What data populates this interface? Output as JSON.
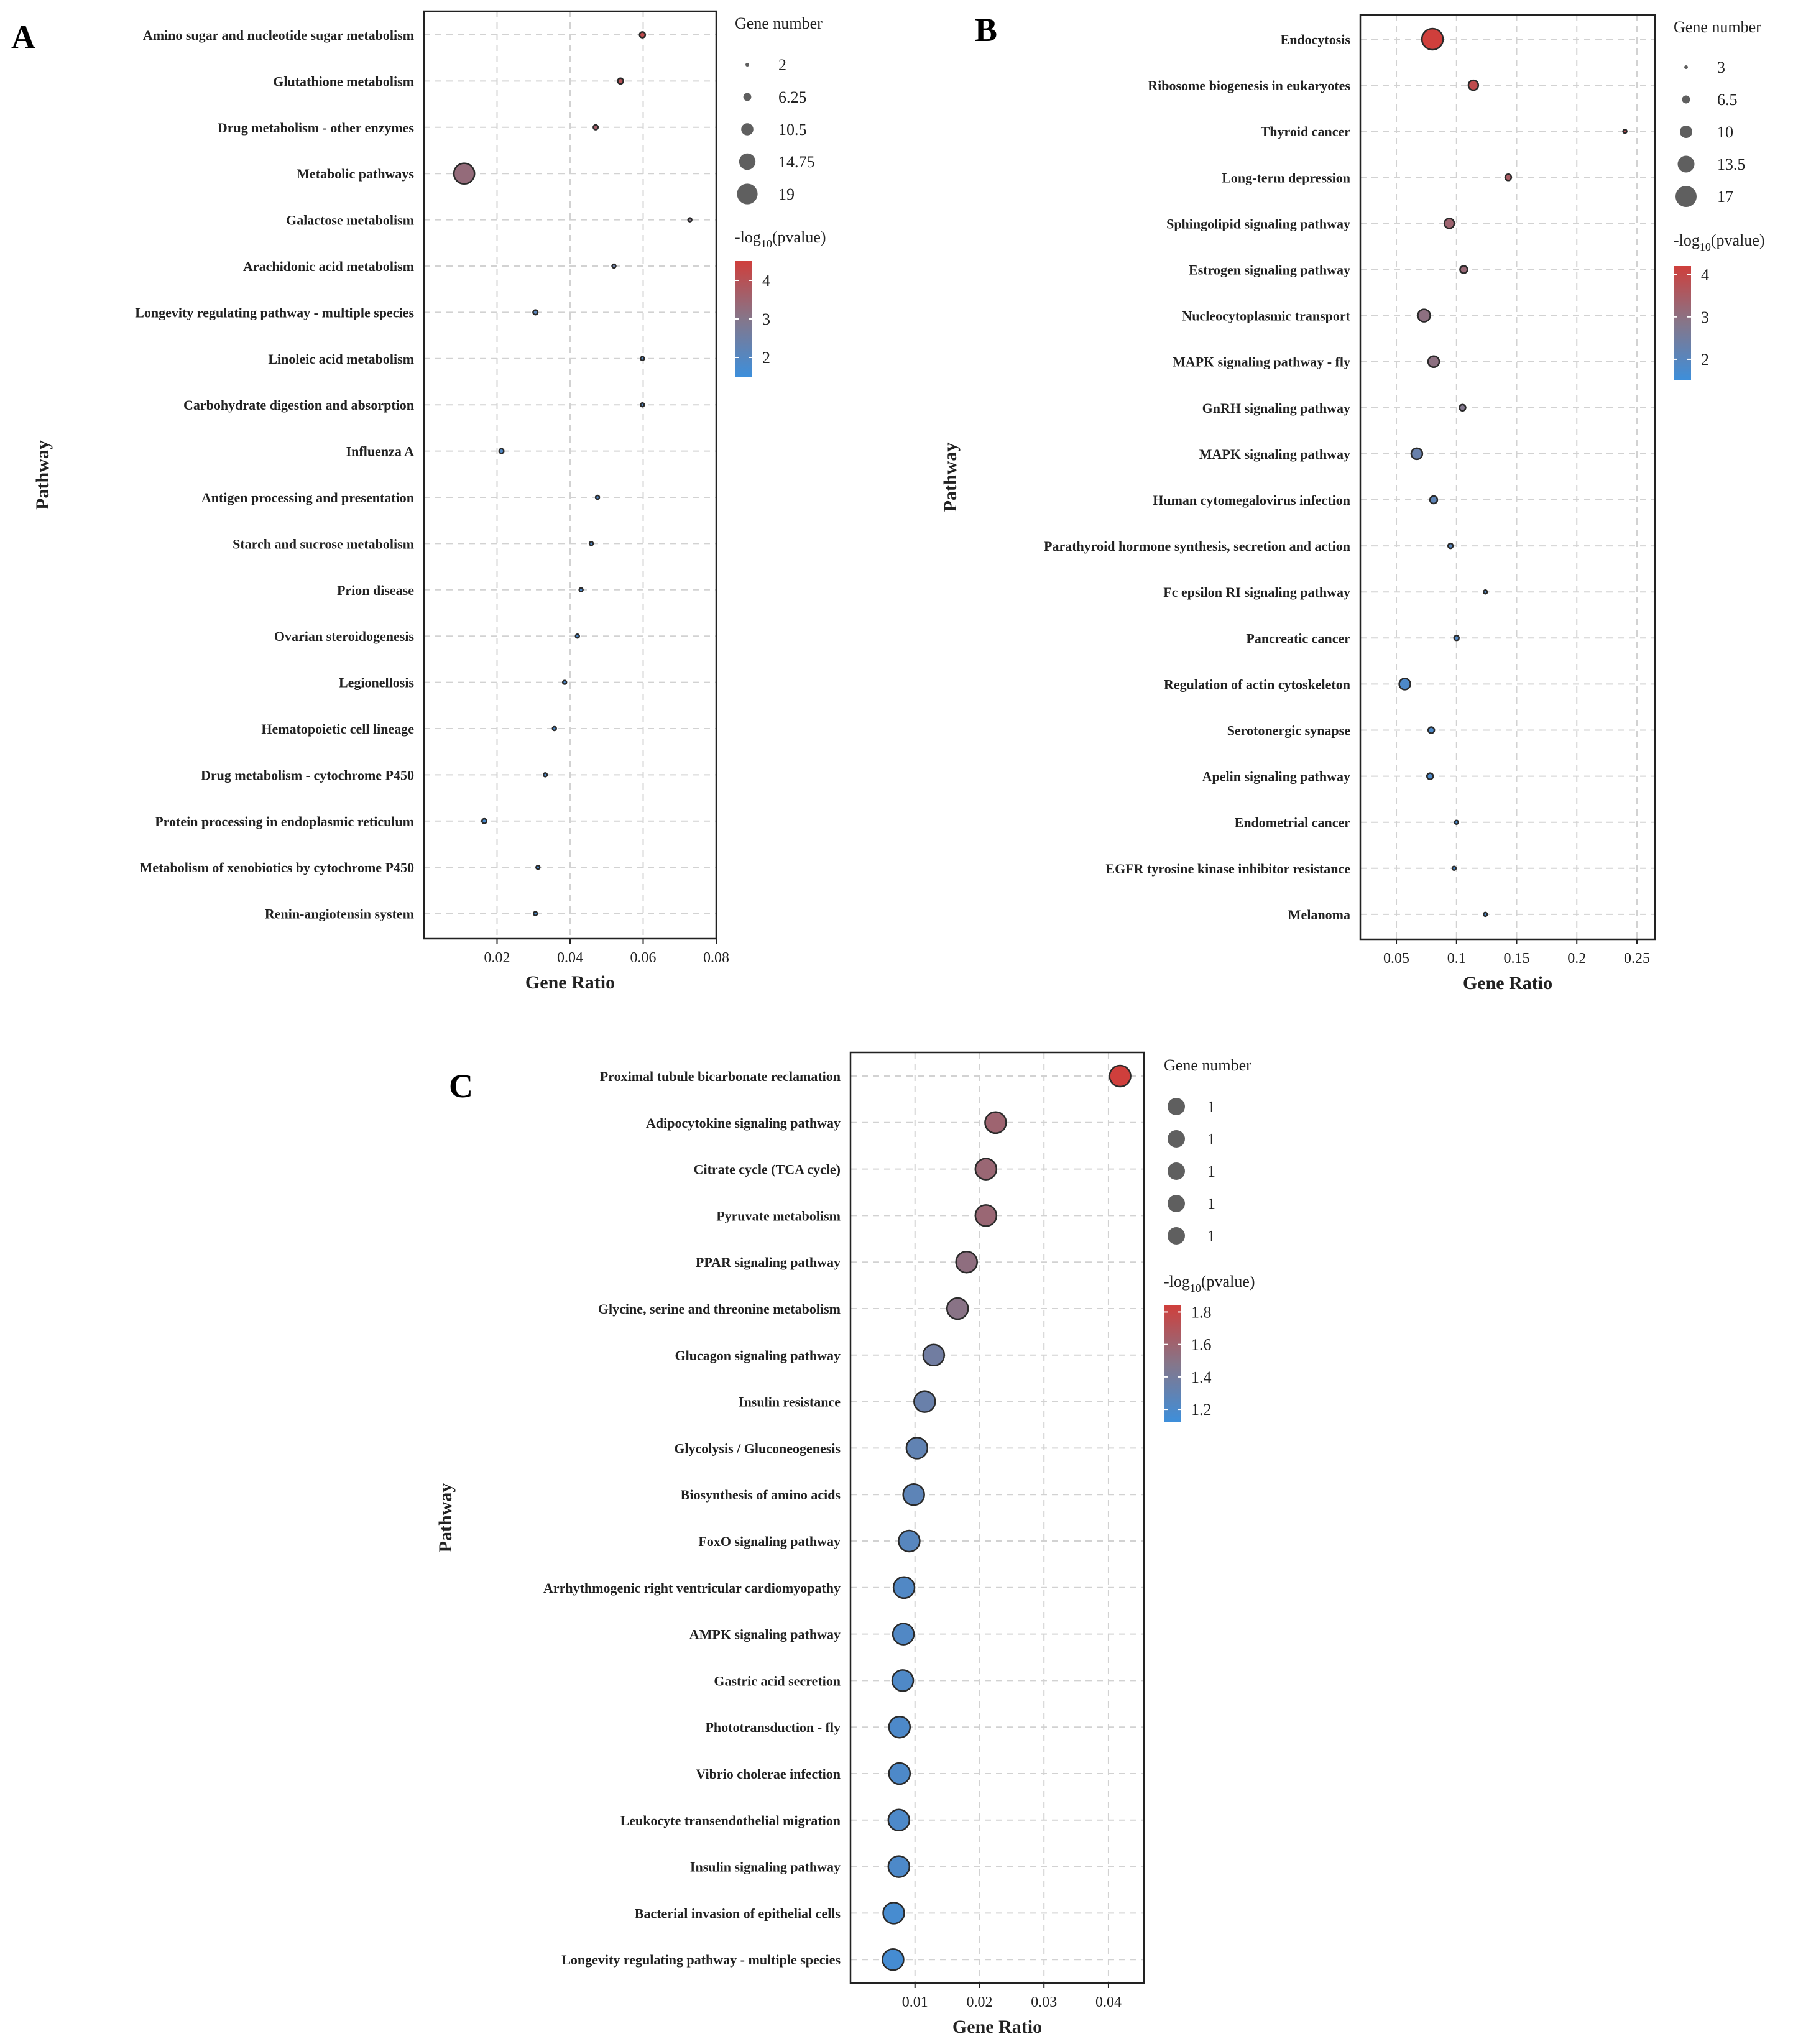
{
  "colors": {
    "low": "#3d8fdb",
    "mid": "#85768a",
    "high": "#cf3f3c",
    "grid": "#d2d2d2",
    "axis": "#222222",
    "point": "#5f5f5f"
  },
  "chart_data": [
    {
      "id": "A",
      "panel_label": "A",
      "type": "scatter",
      "xlabel": "Gene Ratio",
      "ylabel": "Pathway",
      "xlim": [
        0.0,
        0.08
      ],
      "xticks": [
        0.02,
        0.04,
        0.06,
        0.08
      ],
      "xtick_labels": [
        "0.02",
        "0.04",
        "0.06",
        "0.08"
      ],
      "size_legend_title": "Gene number",
      "size_legend": [
        2,
        6.25,
        10.5,
        14.75,
        19
      ],
      "size_legend_labels": [
        "2",
        "6.25",
        "10.5",
        "14.75",
        "19"
      ],
      "size_range": [
        2,
        19
      ],
      "color_legend_title": "-log10(pvalue)",
      "color_range": [
        1.5,
        4.5
      ],
      "color_ticks": [
        4,
        3,
        2
      ],
      "color_tick_labels": [
        "4",
        "3",
        "2"
      ],
      "points": [
        {
          "pathway": "Amino sugar and nucleotide sugar metabolism",
          "gene_ratio": 0.0598,
          "gene_number": 4,
          "neg_log10_p": 4.2
        },
        {
          "pathway": "Glutathione metabolism",
          "gene_ratio": 0.0538,
          "gene_number": 4,
          "neg_log10_p": 4.0
        },
        {
          "pathway": "Drug metabolism - other enzymes",
          "gene_ratio": 0.047,
          "gene_number": 3,
          "neg_log10_p": 3.6
        },
        {
          "pathway": "Metabolic pathways",
          "gene_ratio": 0.011,
          "gene_number": 19,
          "neg_log10_p": 3.3
        },
        {
          "pathway": "Galactose metabolism",
          "gene_ratio": 0.0728,
          "gene_number": 2,
          "neg_log10_p": 3.0
        },
        {
          "pathway": "Arachidonic acid metabolism",
          "gene_ratio": 0.052,
          "gene_number": 2,
          "neg_log10_p": 2.5
        },
        {
          "pathway": "Longevity regulating pathway - multiple species",
          "gene_ratio": 0.0305,
          "gene_number": 3,
          "neg_log10_p": 2.1
        },
        {
          "pathway": "Linoleic acid metabolism",
          "gene_ratio": 0.0598,
          "gene_number": 2,
          "neg_log10_p": 2.0
        },
        {
          "pathway": "Carbohydrate digestion and absorption",
          "gene_ratio": 0.0598,
          "gene_number": 2,
          "neg_log10_p": 2.0
        },
        {
          "pathway": "Influenza A",
          "gene_ratio": 0.0212,
          "gene_number": 3,
          "neg_log10_p": 1.9
        },
        {
          "pathway": "Antigen processing and presentation",
          "gene_ratio": 0.0475,
          "gene_number": 2,
          "neg_log10_p": 1.9
        },
        {
          "pathway": "Starch and sucrose metabolism",
          "gene_ratio": 0.0458,
          "gene_number": 2,
          "neg_log10_p": 1.9
        },
        {
          "pathway": "Prion disease",
          "gene_ratio": 0.043,
          "gene_number": 2,
          "neg_log10_p": 1.85
        },
        {
          "pathway": "Ovarian steroidogenesis",
          "gene_ratio": 0.042,
          "gene_number": 2,
          "neg_log10_p": 1.85
        },
        {
          "pathway": "Legionellosis",
          "gene_ratio": 0.0385,
          "gene_number": 2,
          "neg_log10_p": 1.8
        },
        {
          "pathway": "Hematopoietic cell lineage",
          "gene_ratio": 0.0357,
          "gene_number": 2,
          "neg_log10_p": 1.8
        },
        {
          "pathway": "Drug metabolism - cytochrome P450",
          "gene_ratio": 0.0332,
          "gene_number": 2,
          "neg_log10_p": 1.75
        },
        {
          "pathway": "Protein processing in endoplasmic reticulum",
          "gene_ratio": 0.0165,
          "gene_number": 3,
          "neg_log10_p": 1.75
        },
        {
          "pathway": "Metabolism of xenobiotics by cytochrome P450",
          "gene_ratio": 0.0312,
          "gene_number": 2,
          "neg_log10_p": 1.7
        },
        {
          "pathway": "Renin-angiotensin system",
          "gene_ratio": 0.0305,
          "gene_number": 2,
          "neg_log10_p": 1.7
        }
      ]
    },
    {
      "id": "B",
      "panel_label": "B",
      "type": "scatter",
      "xlabel": "Gene Ratio",
      "ylabel": "Pathway",
      "xlim": [
        0.02,
        0.265
      ],
      "xticks": [
        0.05,
        0.1,
        0.15,
        0.2,
        0.25
      ],
      "xtick_labels": [
        "0.05",
        "0.1",
        "0.15",
        "0.2",
        "0.25"
      ],
      "size_legend_title": "Gene number",
      "size_legend": [
        3,
        6.5,
        10,
        13.5,
        17
      ],
      "size_legend_labels": [
        "3",
        "6.5",
        "10",
        "13.5",
        "17"
      ],
      "size_range": [
        2.5,
        17
      ],
      "color_legend_title": "-log10(pvalue)",
      "color_range": [
        1.5,
        4.2
      ],
      "color_ticks": [
        4,
        3,
        2
      ],
      "color_tick_labels": [
        "4",
        "3",
        "2"
      ],
      "points": [
        {
          "pathway": "Endocytosis",
          "gene_ratio": 0.08,
          "gene_number": 17,
          "neg_log10_p": 4.2
        },
        {
          "pathway": "Ribosome biogenesis in eukaryotes",
          "gene_ratio": 0.114,
          "gene_number": 8,
          "neg_log10_p": 3.9
        },
        {
          "pathway": "Thyroid cancer",
          "gene_ratio": 0.24,
          "gene_number": 3,
          "neg_log10_p": 3.8
        },
        {
          "pathway": "Long-term depression",
          "gene_ratio": 0.143,
          "gene_number": 5,
          "neg_log10_p": 3.5
        },
        {
          "pathway": "Sphingolipid signaling pathway",
          "gene_ratio": 0.094,
          "gene_number": 8,
          "neg_log10_p": 3.3
        },
        {
          "pathway": "Estrogen signaling pathway",
          "gene_ratio": 0.106,
          "gene_number": 6,
          "neg_log10_p": 3.2
        },
        {
          "pathway": "Nucleocytoplasmic transport",
          "gene_ratio": 0.073,
          "gene_number": 10,
          "neg_log10_p": 3.0
        },
        {
          "pathway": "MAPK signaling pathway - fly",
          "gene_ratio": 0.081,
          "gene_number": 9,
          "neg_log10_p": 3.0
        },
        {
          "pathway": "GnRH signaling pathway",
          "gene_ratio": 0.105,
          "gene_number": 5,
          "neg_log10_p": 2.8
        },
        {
          "pathway": "MAPK signaling pathway",
          "gene_ratio": 0.067,
          "gene_number": 9,
          "neg_log10_p": 2.3
        },
        {
          "pathway": "Human cytomegalovirus infection",
          "gene_ratio": 0.081,
          "gene_number": 6,
          "neg_log10_p": 2.1
        },
        {
          "pathway": "Parathyroid hormone synthesis, secretion and action",
          "gene_ratio": 0.095,
          "gene_number": 4,
          "neg_log10_p": 2.0
        },
        {
          "pathway": "Fc epsilon RI signaling pathway",
          "gene_ratio": 0.124,
          "gene_number": 3,
          "neg_log10_p": 1.9
        },
        {
          "pathway": "Pancreatic cancer",
          "gene_ratio": 0.1,
          "gene_number": 4,
          "neg_log10_p": 1.9
        },
        {
          "pathway": "Regulation of actin cytoskeleton",
          "gene_ratio": 0.057,
          "gene_number": 9,
          "neg_log10_p": 1.8
        },
        {
          "pathway": "Serotonergic synapse",
          "gene_ratio": 0.079,
          "gene_number": 5,
          "neg_log10_p": 1.8
        },
        {
          "pathway": "Apelin signaling pathway",
          "gene_ratio": 0.078,
          "gene_number": 5,
          "neg_log10_p": 1.8
        },
        {
          "pathway": "Endometrial cancer",
          "gene_ratio": 0.1,
          "gene_number": 3,
          "neg_log10_p": 1.7
        },
        {
          "pathway": "EGFR tyrosine kinase inhibitor resistance",
          "gene_ratio": 0.098,
          "gene_number": 3,
          "neg_log10_p": 1.7
        },
        {
          "pathway": "Melanoma",
          "gene_ratio": 0.124,
          "gene_number": 3,
          "neg_log10_p": 1.7
        }
      ]
    },
    {
      "id": "C",
      "panel_label": "C",
      "type": "scatter",
      "xlabel": "Gene Ratio",
      "ylabel": "Pathway",
      "xlim": [
        0.0,
        0.0455
      ],
      "xticks": [
        0.01,
        0.02,
        0.03,
        0.04
      ],
      "xtick_labels": [
        "0.01",
        "0.02",
        "0.03",
        "0.04"
      ],
      "size_legend_title": "Gene number",
      "size_legend": [
        1,
        1,
        1,
        1,
        1
      ],
      "size_legend_labels": [
        "1",
        "1",
        "1",
        "1",
        "1"
      ],
      "size_range": [
        1,
        1
      ],
      "color_legend_title": "-log10(pvalue)",
      "color_range": [
        1.12,
        1.84
      ],
      "color_ticks": [
        1.8,
        1.6,
        1.4,
        1.2
      ],
      "color_tick_labels": [
        "1.8",
        "1.6",
        "1.4",
        "1.2"
      ],
      "points": [
        {
          "pathway": "Proximal tubule bicarbonate reclamation",
          "gene_ratio": 0.0418,
          "gene_number": 1,
          "neg_log10_p": 1.84
        },
        {
          "pathway": "Adipocytokine signaling pathway",
          "gene_ratio": 0.0225,
          "gene_number": 1,
          "neg_log10_p": 1.6
        },
        {
          "pathway": "Citrate cycle (TCA cycle)",
          "gene_ratio": 0.021,
          "gene_number": 1,
          "neg_log10_p": 1.58
        },
        {
          "pathway": "Pyruvate metabolism",
          "gene_ratio": 0.021,
          "gene_number": 1,
          "neg_log10_p": 1.58
        },
        {
          "pathway": "PPAR signaling pathway",
          "gene_ratio": 0.018,
          "gene_number": 1,
          "neg_log10_p": 1.53
        },
        {
          "pathway": "Glycine, serine and threonine metabolism",
          "gene_ratio": 0.0166,
          "gene_number": 1,
          "neg_log10_p": 1.5
        },
        {
          "pathway": "Glucagon signaling pathway",
          "gene_ratio": 0.0129,
          "gene_number": 1,
          "neg_log10_p": 1.38
        },
        {
          "pathway": "Insulin resistance",
          "gene_ratio": 0.0115,
          "gene_number": 1,
          "neg_log10_p": 1.34
        },
        {
          "pathway": "Glycolysis / Gluconeogenesis",
          "gene_ratio": 0.0103,
          "gene_number": 1,
          "neg_log10_p": 1.3
        },
        {
          "pathway": "Biosynthesis of amino acids",
          "gene_ratio": 0.0098,
          "gene_number": 1,
          "neg_log10_p": 1.28
        },
        {
          "pathway": "FoxO signaling pathway",
          "gene_ratio": 0.0091,
          "gene_number": 1,
          "neg_log10_p": 1.25
        },
        {
          "pathway": "Arrhythmogenic right ventricular cardiomyopathy",
          "gene_ratio": 0.0083,
          "gene_number": 1,
          "neg_log10_p": 1.22
        },
        {
          "pathway": "AMPK signaling pathway",
          "gene_ratio": 0.0082,
          "gene_number": 1,
          "neg_log10_p": 1.22
        },
        {
          "pathway": "Gastric acid secretion",
          "gene_ratio": 0.0081,
          "gene_number": 1,
          "neg_log10_p": 1.21
        },
        {
          "pathway": "Phototransduction - fly",
          "gene_ratio": 0.0076,
          "gene_number": 1,
          "neg_log10_p": 1.2
        },
        {
          "pathway": "Vibrio cholerae infection",
          "gene_ratio": 0.0076,
          "gene_number": 1,
          "neg_log10_p": 1.2
        },
        {
          "pathway": "Leukocyte transendothelial migration",
          "gene_ratio": 0.0075,
          "gene_number": 1,
          "neg_log10_p": 1.2
        },
        {
          "pathway": "Insulin signaling pathway",
          "gene_ratio": 0.0075,
          "gene_number": 1,
          "neg_log10_p": 1.2
        },
        {
          "pathway": "Bacterial invasion of epithelial cells",
          "gene_ratio": 0.0067,
          "gene_number": 1,
          "neg_log10_p": 1.17
        },
        {
          "pathway": "Longevity regulating pathway - multiple species",
          "gene_ratio": 0.0066,
          "gene_number": 1,
          "neg_log10_p": 1.16
        }
      ]
    }
  ]
}
